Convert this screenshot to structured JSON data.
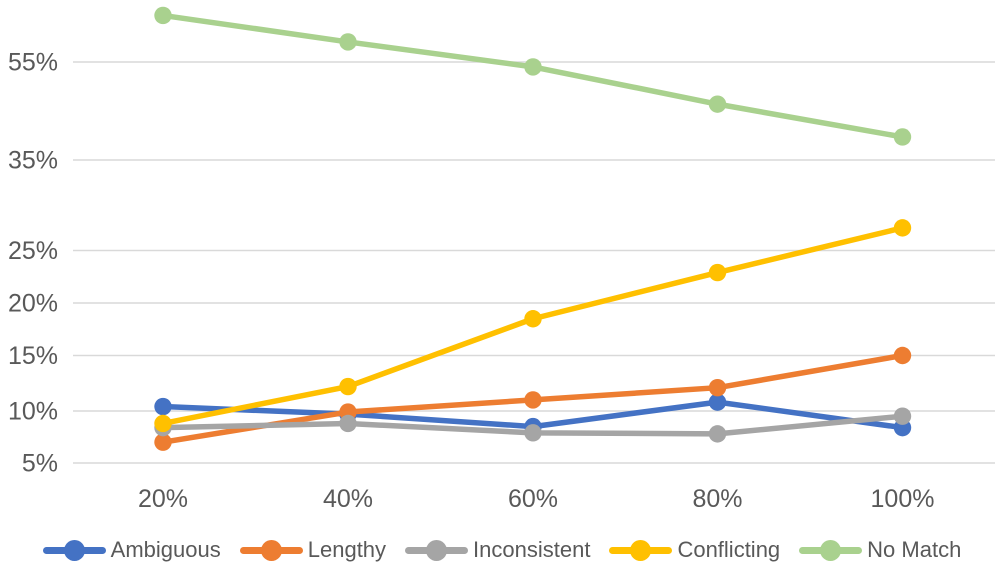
{
  "chart_data": {
    "type": "line",
    "title": "",
    "xlabel": "",
    "ylabel": "",
    "categories": [
      "20%",
      "40%",
      "60%",
      "80%",
      "100%"
    ],
    "series": [
      {
        "name": "Ambiguous",
        "color": "#4472C4",
        "values": [
          10.4,
          9.7,
          8.5,
          10.8,
          8.4
        ]
      },
      {
        "name": "Lengthy",
        "color": "#ED7D31",
        "values": [
          7.0,
          9.9,
          11.0,
          12.1,
          15.0
        ]
      },
      {
        "name": "Inconsistent",
        "color": "#A5A5A5",
        "values": [
          8.4,
          8.8,
          7.9,
          7.8,
          9.5
        ]
      },
      {
        "name": "Conflicting",
        "color": "#FFC000",
        "values": [
          8.8,
          12.2,
          18.5,
          22.9,
          27.5
        ]
      },
      {
        "name": "No Match",
        "color": "#A9D18E",
        "values": [
          64.5,
          59.1,
          54.0,
          46.4,
          39.7
        ]
      }
    ],
    "y_ticks": [
      {
        "value": 5,
        "label": "5%"
      },
      {
        "value": 10,
        "label": "10%"
      },
      {
        "value": 15,
        "label": "15%"
      },
      {
        "value": 20,
        "label": "20%"
      },
      {
        "value": 25,
        "label": "25%"
      },
      {
        "value": 35,
        "label": "35%"
      },
      {
        "value": 55,
        "label": "55%"
      }
    ],
    "layout": {
      "legend_position": "bottom",
      "grid": true,
      "x_axis_type": "category",
      "y_scale": "non-linear (compressed above 25%)"
    }
  },
  "colors": {
    "text": "#595959",
    "gridline": "#D9D9D9",
    "background": "#FFFFFF"
  }
}
